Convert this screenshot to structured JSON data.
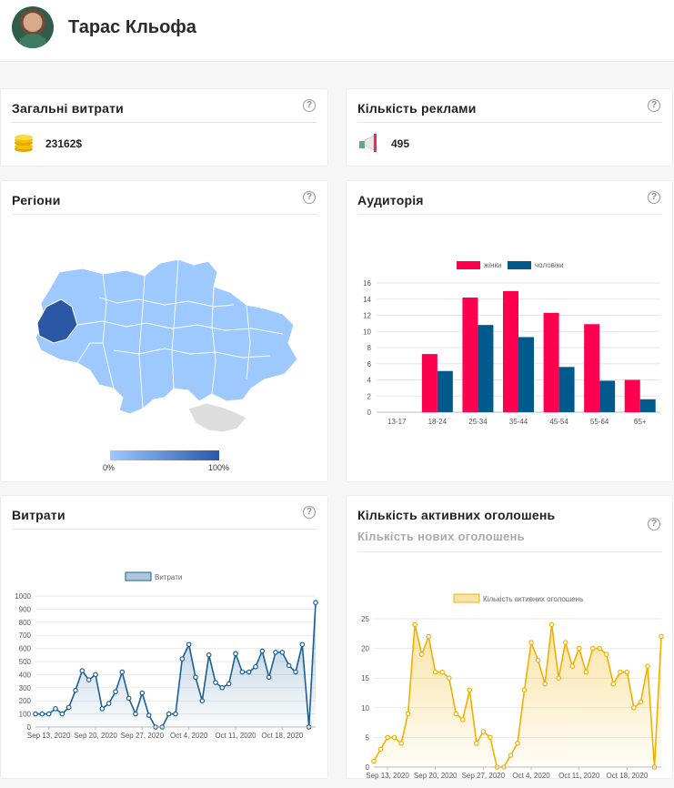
{
  "profile": {
    "name": "Тарас Кльофа"
  },
  "spend_card": {
    "title": "Загальні витрати",
    "value": "23162$"
  },
  "ads_card": {
    "title": "Кількість реклами",
    "value": "495"
  },
  "regions_card": {
    "title": "Регіони",
    "scale_min": "0%",
    "scale_max": "100%"
  },
  "audience_card": {
    "title": "Аудиторія"
  },
  "expenses_card": {
    "title": "Витрати"
  },
  "active_ads_card": {
    "title": "Кількість активних оголошень",
    "subtitle": "Кількість нових оголошень"
  },
  "help_glyph": "?",
  "colors": {
    "women": "#ff0050",
    "men": "#005a8c",
    "spend_line": "#1a5f96",
    "active_line": "#f0b000",
    "map_fill": "#9ec9ff",
    "map_highlight": "#2c57a5"
  },
  "chart_data": [
    {
      "type": "bar",
      "categories": [
        "13-17",
        "18-24",
        "25-34",
        "35-44",
        "45-54",
        "55-64",
        "65+"
      ],
      "series": [
        {
          "name": "жінки",
          "values": [
            0,
            7.2,
            14.2,
            15,
            12.3,
            10.9,
            4
          ]
        },
        {
          "name": "чоловіки",
          "values": [
            0,
            5.1,
            10.8,
            9.3,
            5.6,
            3.9,
            1.6
          ]
        }
      ],
      "ylim": [
        0,
        16
      ],
      "yticks": [
        0,
        2,
        4,
        6,
        8,
        10,
        12,
        14,
        16
      ],
      "legend": "top"
    },
    {
      "type": "area",
      "series": [
        {
          "name": "Витрати",
          "values": [
            100,
            100,
            100,
            140,
            100,
            150,
            280,
            430,
            360,
            400,
            140,
            180,
            270,
            420,
            220,
            100,
            260,
            90,
            0,
            0,
            100,
            100,
            520,
            630,
            380,
            200,
            550,
            340,
            300,
            330,
            560,
            420,
            420,
            460,
            580,
            380,
            570,
            570,
            470,
            420,
            630,
            0,
            950
          ]
        }
      ],
      "xticks": [
        "Sep 13, 2020",
        "Sep 20, 2020",
        "Sep 27, 2020",
        "Oct 4, 2020",
        "Oct 11, 2020",
        "Oct 18, 2020"
      ],
      "ylim": [
        0,
        1000
      ],
      "yticks": [
        0,
        100,
        200,
        300,
        400,
        500,
        600,
        700,
        800,
        900,
        1000
      ],
      "legend": "top"
    },
    {
      "type": "area",
      "series": [
        {
          "name": "Кількість активних оголошень",
          "values": [
            1,
            3,
            5,
            5,
            4,
            9,
            24,
            19,
            22,
            16,
            16,
            15,
            9,
            8,
            13,
            4,
            6,
            5,
            0,
            0,
            2,
            4,
            13,
            21,
            18,
            14,
            24,
            15,
            21,
            17,
            20,
            16,
            20,
            20,
            19,
            14,
            16,
            16,
            10,
            11,
            17,
            0,
            22
          ]
        }
      ],
      "xticks": [
        "Sep 13, 2020",
        "Sep 20, 2020",
        "Sep 27, 2020",
        "Oct 4, 2020",
        "Oct 11, 2020",
        "Oct 18, 2020"
      ],
      "ylim": [
        0,
        25
      ],
      "yticks": [
        0,
        5,
        10,
        15,
        20,
        25
      ],
      "legend": "top"
    }
  ]
}
